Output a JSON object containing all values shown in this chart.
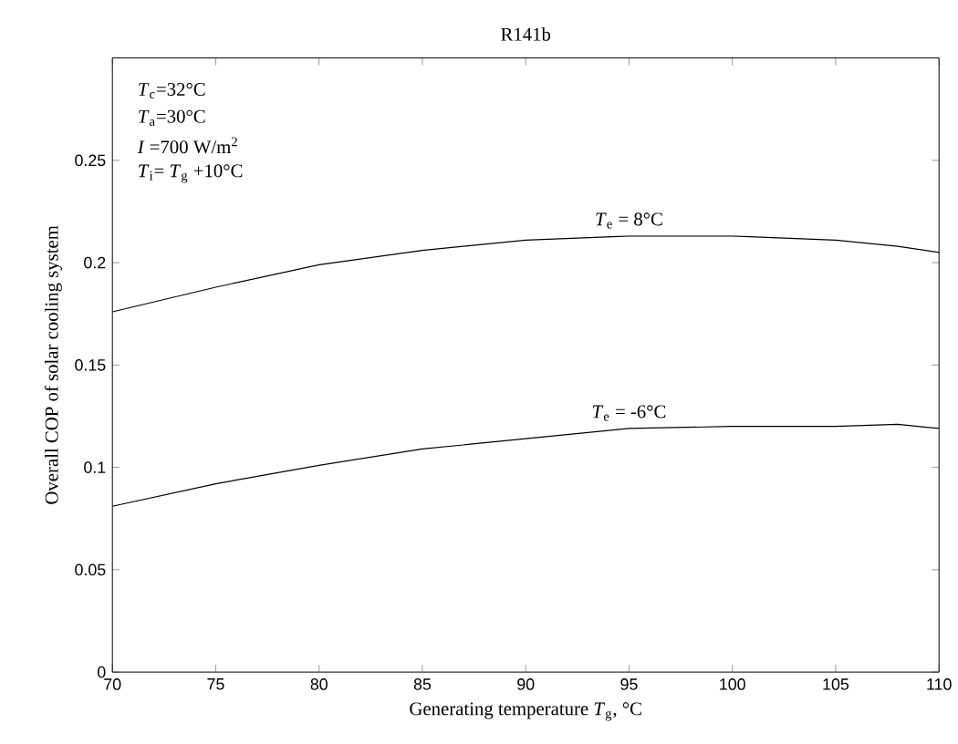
{
  "chart_data": {
    "type": "line",
    "title": "R141b",
    "xlabel": "Generating temperature *T*$_{g}$, °C",
    "ylabel": "Overall COP of solar cooling system",
    "x": [
      70,
      75,
      80,
      85,
      90,
      95,
      100,
      105,
      108,
      110
    ],
    "series": [
      {
        "color": "#000000",
        "values": [
          0.176,
          0.188,
          0.199,
          0.206,
          0.211,
          0.213,
          0.213,
          0.211,
          0.208,
          0.205
        ]
      },
      {
        "color": "#000000",
        "values": [
          0.081,
          0.092,
          0.101,
          0.109,
          0.114,
          0.119,
          0.12,
          0.12,
          0.121,
          0.119
        ]
      }
    ],
    "xlim": [
      70,
      110
    ],
    "ylim": [
      0,
      0.3
    ],
    "xticks": [
      70,
      75,
      80,
      85,
      90,
      95,
      100,
      105,
      110
    ],
    "yticks": [
      0,
      0.05,
      0.1,
      0.15,
      0.2,
      0.25
    ],
    "grid": false,
    "marker": "none",
    "line_style": "solid",
    "annotations": [
      "*T*$_{c}$=32°C",
      "*T*$_{a}$=30°C",
      "*I* =700 W/m$^{2}$",
      "*T*$_{i}$= *T*$_{g}$ +10°C",
      {
        "text": "*T*$_{e}$ = 8°C",
        "x": 95,
        "y": 0.213
      },
      {
        "text": "*T*$_{e}$ = -6°C",
        "x": 95,
        "y": 0.119
      }
    ]
  }
}
